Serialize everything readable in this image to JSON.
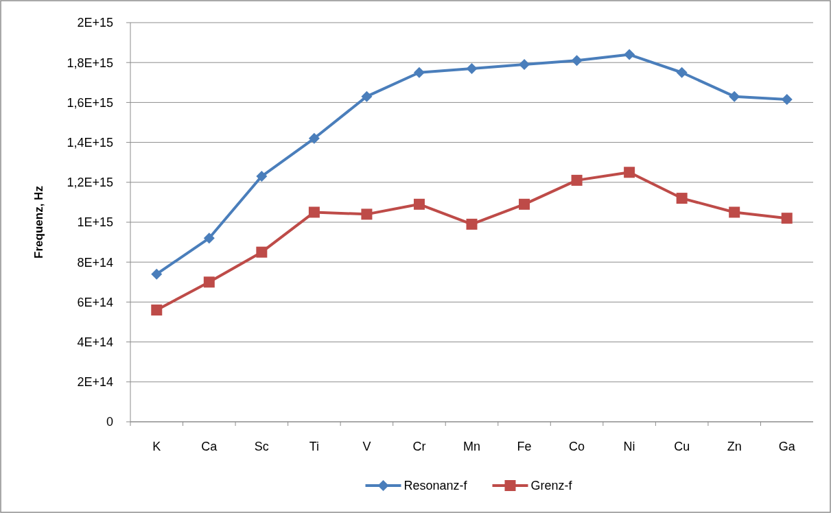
{
  "chart_data": {
    "type": "line",
    "ylabel": "Frequenz, Hz",
    "categories": [
      "K",
      "Ca",
      "Sc",
      "Ti",
      "V",
      "Cr",
      "Mn",
      "Fe",
      "Co",
      "Ni",
      "Cu",
      "Zn",
      "Ga"
    ],
    "series": [
      {
        "name": "Resonanz-f",
        "color": "#4a7ebb",
        "marker": "diamond",
        "values": [
          740000000000000.0,
          920000000000000.0,
          1230000000000000.0,
          1420000000000000.0,
          1630000000000000.0,
          1750000000000000.0,
          1770000000000000.0,
          1790000000000000.0,
          1810000000000000.0,
          1840000000000000.0,
          1750000000000000.0,
          1630000000000000.0,
          1615000000000000.0
        ]
      },
      {
        "name": "Grenz-f",
        "color": "#be4b48",
        "marker": "square",
        "values": [
          560000000000000.0,
          700000000000000.0,
          850000000000000.0,
          1050000000000000.0,
          1040000000000000.0,
          1090000000000000.0,
          990000000000000.0,
          1090000000000000.0,
          1210000000000000.0,
          1250000000000000.0,
          1120000000000000.0,
          1050000000000000.0,
          1020000000000000.0
        ]
      }
    ],
    "ylim": [
      0,
      2000000000000000.0
    ],
    "yticks": [
      {
        "value": 0,
        "label": "0"
      },
      {
        "value": 200000000000000.0,
        "label": "2E+14"
      },
      {
        "value": 400000000000000.0,
        "label": "4E+14"
      },
      {
        "value": 600000000000000.0,
        "label": "6E+14"
      },
      {
        "value": 800000000000000.0,
        "label": "8E+14"
      },
      {
        "value": 1000000000000000.0,
        "label": "1E+15"
      },
      {
        "value": 1200000000000000.0,
        "label": "1,2E+15"
      },
      {
        "value": 1400000000000000.0,
        "label": "1,4E+15"
      },
      {
        "value": 1600000000000000.0,
        "label": "1,6E+15"
      },
      {
        "value": 1800000000000000.0,
        "label": "1,8E+15"
      },
      {
        "value": 2000000000000000.0,
        "label": "2E+15"
      }
    ],
    "grid": "y",
    "legend": "bottom",
    "line_style": "solid"
  }
}
